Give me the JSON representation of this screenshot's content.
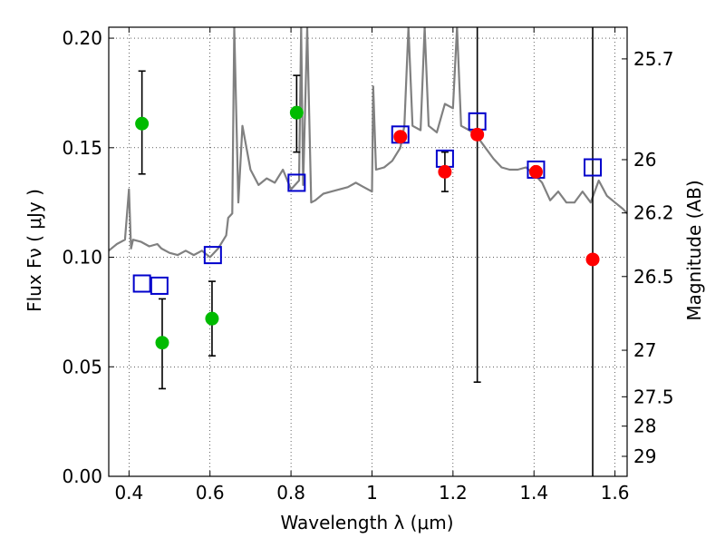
{
  "chart_data": {
    "type": "scatter",
    "title": "",
    "xlabel": "Wavelength  λ (μm)",
    "ylabel": "Flux  Fν  ( μJy )",
    "ylabel_right": "Magnitude (AB)",
    "xlim": [
      0.35,
      1.63
    ],
    "ylim": [
      0.0,
      0.205
    ],
    "grid": true,
    "x_ticks": [
      {
        "value": 0.4,
        "label": "0.4"
      },
      {
        "value": 0.6,
        "label": "0.6"
      },
      {
        "value": 0.8,
        "label": "0.8"
      },
      {
        "value": 1.0,
        "label": "1"
      },
      {
        "value": 1.2,
        "label": "1.2"
      },
      {
        "value": 1.4,
        "label": "1.4"
      },
      {
        "value": 1.6,
        "label": "1.6"
      }
    ],
    "y_ticks": [
      {
        "value": 0.0,
        "label": "0.00"
      },
      {
        "value": 0.05,
        "label": "0.05"
      },
      {
        "value": 0.1,
        "label": "0.10"
      },
      {
        "value": 0.15,
        "label": "0.15"
      },
      {
        "value": 0.2,
        "label": "0.20"
      }
    ],
    "y2_ticks": [
      {
        "value": 25.7,
        "label": "25.7"
      },
      {
        "value": 26.0,
        "label": "26"
      },
      {
        "value": 26.2,
        "label": "26.2"
      },
      {
        "value": 26.5,
        "label": "26.5"
      },
      {
        "value": 27.0,
        "label": "27"
      },
      {
        "value": 27.5,
        "label": "27.5"
      },
      {
        "value": 28.0,
        "label": "28"
      },
      {
        "value": 29.0,
        "label": "29"
      }
    ],
    "colors": {
      "model": "#808080",
      "green_points": "#00bb00",
      "red_points": "#ff0000",
      "blue_squares": "#0000cc",
      "error_bars": "#000000"
    },
    "series": [
      {
        "kind": "model_spectrum",
        "x": [
          0.35,
          0.37,
          0.39,
          0.4,
          0.405,
          0.41,
          0.43,
          0.45,
          0.47,
          0.48,
          0.5,
          0.52,
          0.54,
          0.56,
          0.58,
          0.6,
          0.62,
          0.64,
          0.645,
          0.655,
          0.66,
          0.67,
          0.68,
          0.7,
          0.72,
          0.74,
          0.76,
          0.78,
          0.8,
          0.82,
          0.825,
          0.83,
          0.84,
          0.85,
          0.86,
          0.88,
          0.9,
          0.92,
          0.94,
          0.96,
          0.98,
          1.0,
          1.003,
          1.01,
          1.03,
          1.05,
          1.07,
          1.08,
          1.09,
          1.1,
          1.12,
          1.13,
          1.14,
          1.16,
          1.18,
          1.2,
          1.21,
          1.22,
          1.24,
          1.26,
          1.28,
          1.3,
          1.32,
          1.34,
          1.36,
          1.38,
          1.4,
          1.42,
          1.44,
          1.46,
          1.48,
          1.5,
          1.52,
          1.54,
          1.56,
          1.58,
          1.6,
          1.62,
          1.63
        ],
        "y": [
          0.103,
          0.106,
          0.108,
          0.131,
          0.104,
          0.108,
          0.107,
          0.105,
          0.106,
          0.104,
          0.102,
          0.101,
          0.103,
          0.101,
          0.103,
          0.1,
          0.104,
          0.11,
          0.118,
          0.12,
          0.205,
          0.125,
          0.16,
          0.14,
          0.133,
          0.136,
          0.134,
          0.14,
          0.131,
          0.135,
          0.205,
          0.133,
          0.205,
          0.125,
          0.126,
          0.129,
          0.13,
          0.131,
          0.132,
          0.134,
          0.132,
          0.13,
          0.178,
          0.14,
          0.141,
          0.144,
          0.15,
          0.16,
          0.205,
          0.16,
          0.158,
          0.205,
          0.16,
          0.157,
          0.17,
          0.168,
          0.205,
          0.16,
          0.158,
          0.155,
          0.15,
          0.145,
          0.141,
          0.14,
          0.14,
          0.141,
          0.138,
          0.134,
          0.126,
          0.13,
          0.125,
          0.125,
          0.13,
          0.125,
          0.135,
          0.128,
          0.125,
          0.122,
          0.12
        ]
      },
      {
        "kind": "green_points_with_errorbars",
        "points": [
          {
            "x": 0.432,
            "y": 0.161,
            "yerr_low": 0.138,
            "yerr_high": 0.185
          },
          {
            "x": 0.482,
            "y": 0.061,
            "yerr_low": 0.04,
            "yerr_high": 0.081
          },
          {
            "x": 0.605,
            "y": 0.072,
            "yerr_low": 0.055,
            "yerr_high": 0.089
          },
          {
            "x": 0.814,
            "y": 0.166,
            "yerr_low": 0.148,
            "yerr_high": 0.183
          }
        ]
      },
      {
        "kind": "red_points_with_errorbars",
        "points": [
          {
            "x": 1.07,
            "y": 0.155,
            "yerr_low": null,
            "yerr_high": null
          },
          {
            "x": 1.18,
            "y": 0.139,
            "yerr_low": 0.13,
            "yerr_high": 0.148
          },
          {
            "x": 1.26,
            "y": 0.156,
            "yerr_low": 0.043,
            "yerr_high": 0.205
          },
          {
            "x": 1.405,
            "y": 0.139,
            "yerr_low": null,
            "yerr_high": null
          },
          {
            "x": 1.545,
            "y": 0.099,
            "yerr_low": 0.0,
            "yerr_high": 0.205
          }
        ]
      },
      {
        "kind": "blue_open_squares",
        "points": [
          {
            "x": 0.432,
            "y": 0.088
          },
          {
            "x": 0.475,
            "y": 0.087
          },
          {
            "x": 0.607,
            "y": 0.101
          },
          {
            "x": 0.814,
            "y": 0.134
          },
          {
            "x": 1.07,
            "y": 0.156
          },
          {
            "x": 1.18,
            "y": 0.145
          },
          {
            "x": 1.26,
            "y": 0.162
          },
          {
            "x": 1.405,
            "y": 0.14
          },
          {
            "x": 1.545,
            "y": 0.141
          }
        ]
      }
    ]
  }
}
